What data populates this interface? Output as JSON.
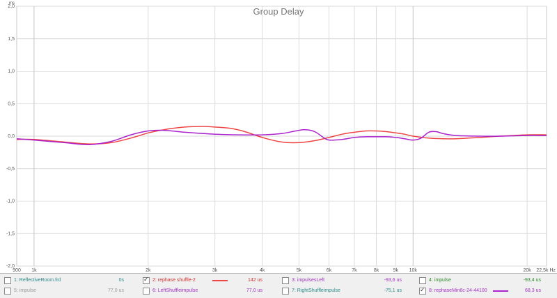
{
  "chart_data": {
    "type": "line",
    "title": "Group Delay",
    "ylabel": "ms",
    "xunit": "Hz",
    "xscale": "log",
    "xlim": [
      900,
      22500
    ],
    "ylim": [
      -2.0,
      2.0
    ],
    "grid": true,
    "yticks": [
      2.0,
      1.5,
      1.0,
      0.5,
      0.0,
      -0.5,
      -1.0,
      -1.5,
      -2.0
    ],
    "ytick_labels": [
      "2,0",
      "1,5",
      "1,0",
      "0,5",
      "0,0",
      "-0,5",
      "-1,0",
      "-1,5",
      "-2,0"
    ],
    "xticks": [
      900,
      1000,
      2000,
      3000,
      4000,
      5000,
      6000,
      7000,
      8000,
      9000,
      10000,
      20000,
      22500
    ],
    "xtick_labels": [
      "900",
      "1k",
      "2k",
      "3k",
      "4k",
      "5k",
      "6k",
      "7k",
      "8k",
      "9k",
      "10k",
      "20k",
      "22,5k Hz"
    ],
    "series": [
      {
        "name": "2: rephase shuffle-2",
        "color": "#ee4444",
        "x": [
          900,
          1000,
          1200,
          1400,
          1600,
          1800,
          2000,
          2200,
          2500,
          2800,
          3000,
          3300,
          3600,
          4000,
          4500,
          5000,
          5500,
          6000,
          6500,
          7000,
          7500,
          8000,
          8500,
          9000,
          9500,
          10000,
          11000,
          12000,
          13000,
          15000,
          17000,
          20000,
          22500
        ],
        "y": [
          -0.05,
          -0.05,
          -0.09,
          -0.12,
          -0.1,
          -0.03,
          0.05,
          0.1,
          0.14,
          0.15,
          0.14,
          0.12,
          0.07,
          -0.02,
          -0.09,
          -0.1,
          -0.07,
          -0.02,
          0.03,
          0.06,
          0.08,
          0.08,
          0.07,
          0.05,
          0.03,
          0.0,
          -0.03,
          -0.04,
          -0.04,
          -0.02,
          0.0,
          0.02,
          0.02
        ]
      },
      {
        "name": "8: rephaseMin6c-24-44100",
        "color": "#aa22cc",
        "x": [
          900,
          1000,
          1200,
          1400,
          1600,
          1800,
          2000,
          2200,
          2500,
          2800,
          3000,
          3500,
          4000,
          4500,
          4900,
          5200,
          5500,
          5800,
          6000,
          6500,
          7000,
          7500,
          8000,
          8500,
          9000,
          9500,
          10000,
          10500,
          11000,
          11500,
          12000,
          13000,
          15000,
          17000,
          20000,
          22500
        ],
        "y": [
          -0.04,
          -0.06,
          -0.1,
          -0.13,
          -0.08,
          0.02,
          0.08,
          0.09,
          0.06,
          0.04,
          0.03,
          0.02,
          0.02,
          0.04,
          0.08,
          0.1,
          0.07,
          -0.02,
          -0.06,
          -0.05,
          -0.02,
          -0.01,
          -0.01,
          -0.01,
          -0.02,
          -0.04,
          -0.06,
          -0.03,
          0.06,
          0.07,
          0.04,
          0.01,
          0.0,
          0.0,
          0.01,
          0.01
        ]
      }
    ]
  },
  "legend": [
    {
      "label": "1: ReflectiveRoom.frd",
      "value": "0s",
      "checked": false,
      "label_color": "#2a8a8a",
      "value_color": "#2a8a8a"
    },
    {
      "label": "2: rephase shuffle-2",
      "value": "142 us",
      "checked": true,
      "label_color": "#d03030",
      "value_color": "#d03030",
      "swatch": "#ee4444"
    },
    {
      "label": "3: impulsesLeft",
      "value": "-93,6 us",
      "checked": false,
      "label_color": "#a030c0",
      "value_color": "#a030c0"
    },
    {
      "label": "4: impulse",
      "value": "-93,4 us",
      "checked": false,
      "label_color": "#2a8a2a",
      "value_color": "#2a8a2a"
    },
    {
      "label": "5: impulse",
      "value": "77,0 us",
      "checked": false,
      "label_color": "#999999",
      "value_color": "#999999"
    },
    {
      "label": "6: LeftShuffleimpulse",
      "value": "77,0 us",
      "checked": false,
      "label_color": "#a030c0",
      "value_color": "#a030c0"
    },
    {
      "label": "7: RightShuffleimpulse",
      "value": "-75,1 us",
      "checked": false,
      "label_color": "#2a8a8a",
      "value_color": "#2a8a8a"
    },
    {
      "label": "8: rephaseMin6c-24-44100",
      "value": "68,3 us",
      "checked": true,
      "label_color": "#a030c0",
      "value_color": "#a030c0",
      "swatch": "#aa22cc"
    }
  ]
}
